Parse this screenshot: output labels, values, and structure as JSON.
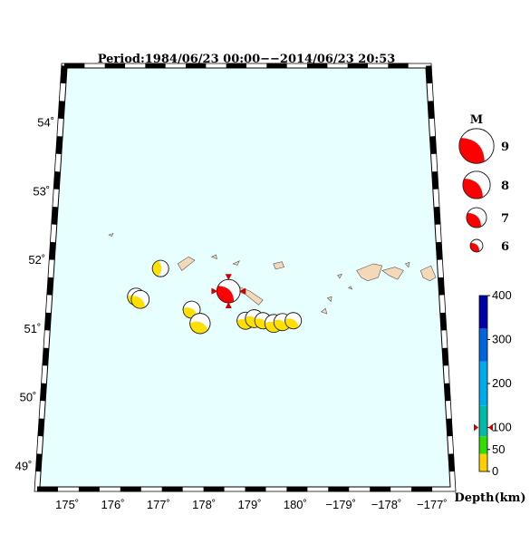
{
  "title": "Period:1984/06/23 00:00−−2014/06/23 20:53",
  "map": {
    "lat_labels": [
      "54˚",
      "53˚",
      "52˚",
      "51˚",
      "50˚",
      "49˚"
    ],
    "lat_values": [
      54,
      53,
      52,
      51,
      50,
      49
    ],
    "lon_labels": [
      "175˚",
      "176˚",
      "177˚",
      "178˚",
      "179˚",
      "180˚",
      "−179˚",
      "−178˚",
      "−177˚"
    ],
    "lon_values": [
      175,
      176,
      177,
      178,
      179,
      180,
      181,
      182,
      183
    ],
    "ocean_color": "#e8ffff",
    "land_color": "#f5d8b8"
  },
  "events": [
    {
      "lon": 176.9,
      "lat": 51.88,
      "mag": 6.4,
      "color": "#ffe000",
      "rot": 90
    },
    {
      "lon": 176.35,
      "lat": 51.47,
      "mag": 6.5,
      "color": "#ffe000",
      "rot": 20
    },
    {
      "lon": 176.45,
      "lat": 51.43,
      "mag": 6.6,
      "color": "#ffe000",
      "rot": 40
    },
    {
      "lon": 177.65,
      "lat": 51.28,
      "mag": 6.5,
      "color": "#ffe000",
      "rot": 30
    },
    {
      "lon": 177.85,
      "lat": 51.08,
      "mag": 6.9,
      "color": "#ffe000",
      "rot": 20
    },
    {
      "lon": 178.5,
      "lat": 51.55,
      "mag": 7.3,
      "color": "#ff0000",
      "rot": 45,
      "main": true
    },
    {
      "lon": 178.9,
      "lat": 51.12,
      "mag": 6.5,
      "color": "#ffe000",
      "rot": 20
    },
    {
      "lon": 179.1,
      "lat": 51.15,
      "mag": 6.6,
      "color": "#ffe000",
      "rot": 30
    },
    {
      "lon": 179.3,
      "lat": 51.12,
      "mag": 6.4,
      "color": "#ffe000",
      "rot": 30
    },
    {
      "lon": 179.55,
      "lat": 51.08,
      "mag": 6.6,
      "color": "#ffe000",
      "rot": 20
    },
    {
      "lon": 179.75,
      "lat": 51.1,
      "mag": 6.5,
      "color": "#ffe000",
      "rot": 30
    },
    {
      "lon": 180.0,
      "lat": 51.12,
      "mag": 6.4,
      "color": "#ffe000",
      "rot": 30
    }
  ],
  "magnitude_legend": {
    "title": "M",
    "items": [
      {
        "label": "9",
        "mag": 9
      },
      {
        "label": "8",
        "mag": 8
      },
      {
        "label": "7",
        "mag": 7
      },
      {
        "label": "6",
        "mag": 6
      }
    ],
    "color": "#ff0000"
  },
  "depth_scale": {
    "title": "Depth(km)",
    "ticks": [
      "0",
      "50",
      "100",
      "200",
      "300",
      "400"
    ],
    "tick_values": [
      0,
      50,
      100,
      200,
      300,
      400
    ],
    "bands": [
      {
        "from": 0,
        "to": 40,
        "color": "#ffd000"
      },
      {
        "from": 40,
        "to": 80,
        "color": "#33dd00"
      },
      {
        "from": 80,
        "to": 150,
        "color": "#00bbaa"
      },
      {
        "from": 150,
        "to": 250,
        "color": "#00aaee"
      },
      {
        "from": 250,
        "to": 325,
        "color": "#0066dd"
      },
      {
        "from": 325,
        "to": 400,
        "color": "#0000aa"
      }
    ],
    "marker_depth": 100
  }
}
